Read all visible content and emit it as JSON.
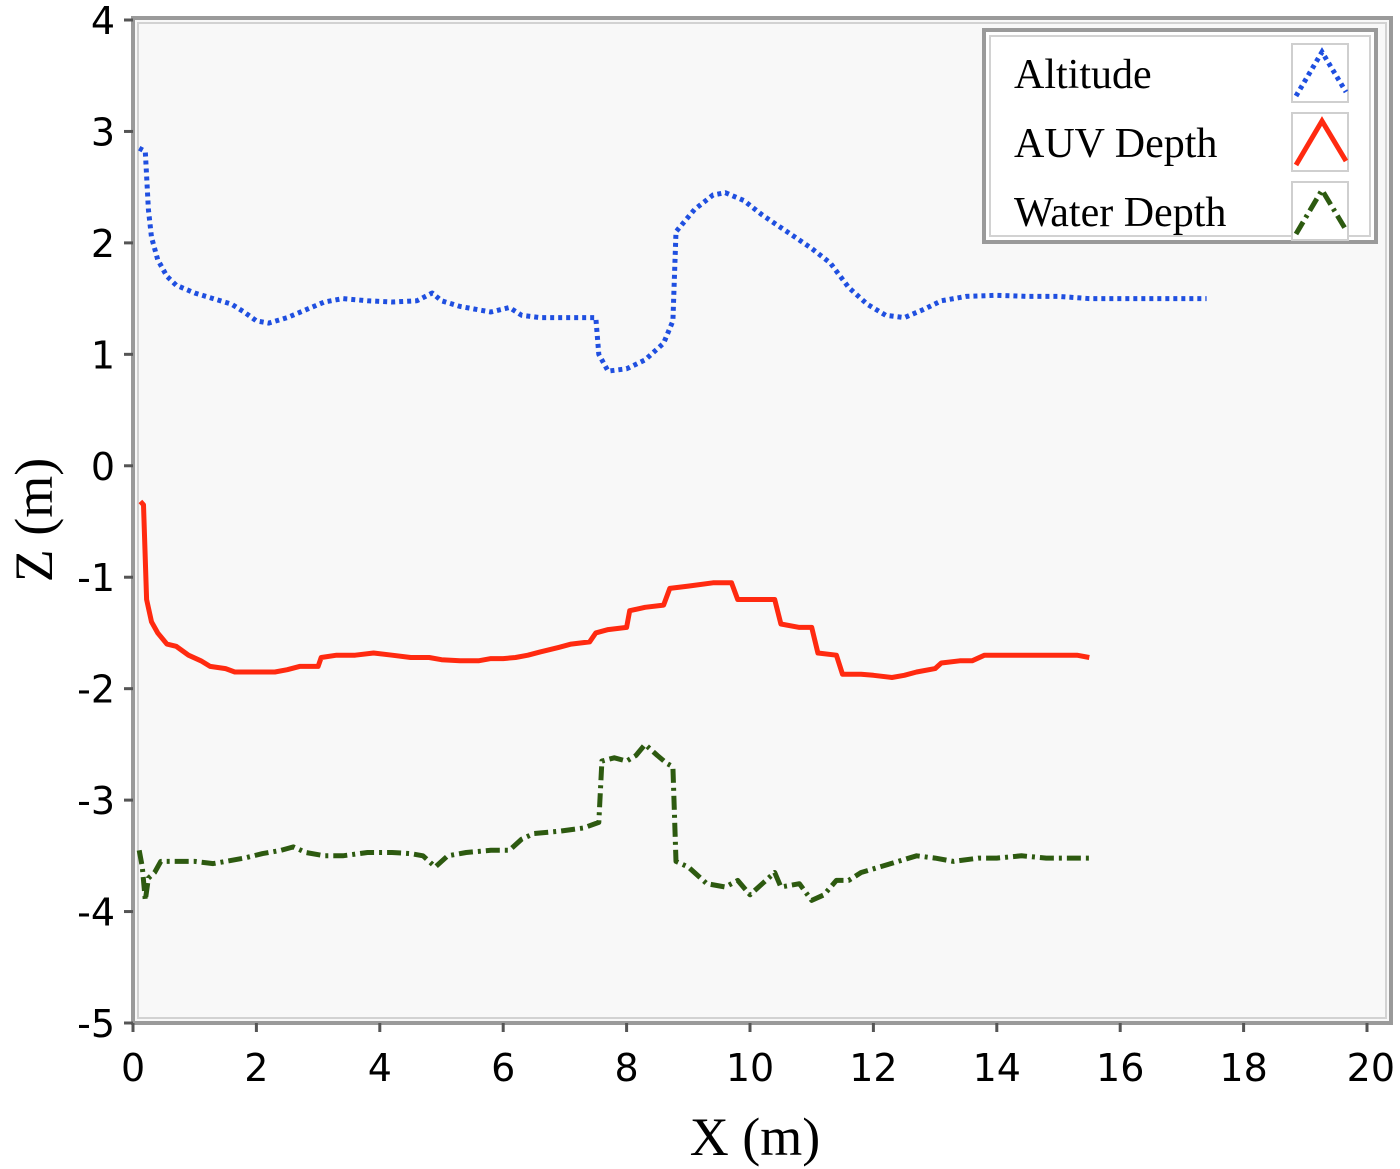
{
  "chart_data": {
    "type": "line",
    "xlabel": "X (m)",
    "ylabel": "Z (m)",
    "xlim": [
      0,
      20
    ],
    "ylim": [
      -5,
      4
    ],
    "x_ticks": [
      "0",
      "2",
      "4",
      "6",
      "8",
      "10",
      "12",
      "14",
      "16",
      "18",
      "20"
    ],
    "y_ticks": [
      "4",
      "3",
      "2",
      "1",
      "0",
      "-1",
      "-2",
      "-3",
      "-4",
      "-5"
    ],
    "grid": false,
    "legend_position": "top-right",
    "series": [
      {
        "name": "Altitude",
        "color": "#1f4fe0",
        "style": "dotted",
        "points": [
          [
            0.1,
            2.85
          ],
          [
            0.2,
            2.82
          ],
          [
            0.25,
            2.3
          ],
          [
            0.3,
            2.05
          ],
          [
            0.4,
            1.85
          ],
          [
            0.55,
            1.7
          ],
          [
            0.7,
            1.62
          ],
          [
            1.0,
            1.55
          ],
          [
            1.3,
            1.5
          ],
          [
            1.6,
            1.45
          ],
          [
            1.8,
            1.38
          ],
          [
            2.0,
            1.3
          ],
          [
            2.2,
            1.28
          ],
          [
            2.5,
            1.33
          ],
          [
            2.8,
            1.4
          ],
          [
            3.1,
            1.47
          ],
          [
            3.4,
            1.5
          ],
          [
            3.8,
            1.48
          ],
          [
            4.2,
            1.47
          ],
          [
            4.6,
            1.48
          ],
          [
            4.85,
            1.55
          ],
          [
            5.0,
            1.48
          ],
          [
            5.3,
            1.43
          ],
          [
            5.6,
            1.4
          ],
          [
            5.8,
            1.38
          ],
          [
            6.1,
            1.42
          ],
          [
            6.3,
            1.35
          ],
          [
            6.6,
            1.33
          ],
          [
            7.0,
            1.33
          ],
          [
            7.5,
            1.33
          ],
          [
            7.55,
            1.0
          ],
          [
            7.7,
            0.85
          ],
          [
            8.0,
            0.87
          ],
          [
            8.3,
            0.95
          ],
          [
            8.6,
            1.1
          ],
          [
            8.75,
            1.3
          ],
          [
            8.8,
            2.1
          ],
          [
            9.1,
            2.3
          ],
          [
            9.4,
            2.43
          ],
          [
            9.6,
            2.45
          ],
          [
            9.9,
            2.38
          ],
          [
            10.2,
            2.25
          ],
          [
            10.6,
            2.1
          ],
          [
            11.0,
            1.95
          ],
          [
            11.3,
            1.82
          ],
          [
            11.6,
            1.6
          ],
          [
            11.9,
            1.45
          ],
          [
            12.2,
            1.35
          ],
          [
            12.5,
            1.33
          ],
          [
            12.8,
            1.4
          ],
          [
            13.1,
            1.48
          ],
          [
            13.5,
            1.52
          ],
          [
            14.0,
            1.53
          ],
          [
            14.5,
            1.52
          ],
          [
            15.0,
            1.52
          ],
          [
            15.5,
            1.5
          ],
          [
            16.0,
            1.5
          ],
          [
            16.5,
            1.5
          ],
          [
            17.0,
            1.5
          ],
          [
            17.4,
            1.5
          ]
        ]
      },
      {
        "name": "AUV Depth",
        "color": "#ff2a10",
        "style": "solid",
        "points": [
          [
            0.12,
            -0.32
          ],
          [
            0.17,
            -0.35
          ],
          [
            0.22,
            -1.2
          ],
          [
            0.3,
            -1.4
          ],
          [
            0.4,
            -1.5
          ],
          [
            0.55,
            -1.6
          ],
          [
            0.7,
            -1.62
          ],
          [
            0.9,
            -1.7
          ],
          [
            1.1,
            -1.75
          ],
          [
            1.25,
            -1.8
          ],
          [
            1.5,
            -1.82
          ],
          [
            1.65,
            -1.85
          ],
          [
            1.9,
            -1.85
          ],
          [
            2.3,
            -1.85
          ],
          [
            2.5,
            -1.83
          ],
          [
            2.7,
            -1.8
          ],
          [
            3.0,
            -1.8
          ],
          [
            3.05,
            -1.72
          ],
          [
            3.3,
            -1.7
          ],
          [
            3.6,
            -1.7
          ],
          [
            3.9,
            -1.68
          ],
          [
            4.2,
            -1.7
          ],
          [
            4.5,
            -1.72
          ],
          [
            4.8,
            -1.72
          ],
          [
            5.0,
            -1.74
          ],
          [
            5.3,
            -1.75
          ],
          [
            5.6,
            -1.75
          ],
          [
            5.8,
            -1.73
          ],
          [
            6.0,
            -1.73
          ],
          [
            6.2,
            -1.72
          ],
          [
            6.4,
            -1.7
          ],
          [
            6.6,
            -1.67
          ],
          [
            6.9,
            -1.63
          ],
          [
            7.1,
            -1.6
          ],
          [
            7.4,
            -1.58
          ],
          [
            7.5,
            -1.5
          ],
          [
            7.7,
            -1.47
          ],
          [
            8.0,
            -1.45
          ],
          [
            8.05,
            -1.3
          ],
          [
            8.3,
            -1.27
          ],
          [
            8.6,
            -1.25
          ],
          [
            8.7,
            -1.1
          ],
          [
            9.0,
            -1.08
          ],
          [
            9.4,
            -1.05
          ],
          [
            9.7,
            -1.05
          ],
          [
            9.8,
            -1.2
          ],
          [
            10.1,
            -1.2
          ],
          [
            10.4,
            -1.2
          ],
          [
            10.5,
            -1.42
          ],
          [
            10.8,
            -1.45
          ],
          [
            11.0,
            -1.45
          ],
          [
            11.1,
            -1.68
          ],
          [
            11.4,
            -1.7
          ],
          [
            11.5,
            -1.87
          ],
          [
            11.8,
            -1.87
          ],
          [
            12.0,
            -1.88
          ],
          [
            12.3,
            -1.9
          ],
          [
            12.5,
            -1.88
          ],
          [
            12.7,
            -1.85
          ],
          [
            13.0,
            -1.82
          ],
          [
            13.1,
            -1.77
          ],
          [
            13.4,
            -1.75
          ],
          [
            13.6,
            -1.75
          ],
          [
            13.8,
            -1.7
          ],
          [
            14.2,
            -1.7
          ],
          [
            14.5,
            -1.7
          ],
          [
            15.0,
            -1.7
          ],
          [
            15.3,
            -1.7
          ],
          [
            15.5,
            -1.72
          ]
        ]
      },
      {
        "name": "Water Depth",
        "color": "#2d5a10",
        "style": "dashdot",
        "points": [
          [
            0.1,
            -3.45
          ],
          [
            0.15,
            -3.6
          ],
          [
            0.2,
            -3.9
          ],
          [
            0.25,
            -3.7
          ],
          [
            0.35,
            -3.65
          ],
          [
            0.45,
            -3.55
          ],
          [
            0.7,
            -3.55
          ],
          [
            1.0,
            -3.55
          ],
          [
            1.3,
            -3.57
          ],
          [
            1.5,
            -3.55
          ],
          [
            1.8,
            -3.52
          ],
          [
            2.1,
            -3.48
          ],
          [
            2.4,
            -3.45
          ],
          [
            2.6,
            -3.42
          ],
          [
            2.8,
            -3.47
          ],
          [
            3.1,
            -3.5
          ],
          [
            3.4,
            -3.5
          ],
          [
            3.8,
            -3.47
          ],
          [
            4.2,
            -3.47
          ],
          [
            4.5,
            -3.48
          ],
          [
            4.7,
            -3.5
          ],
          [
            4.9,
            -3.6
          ],
          [
            5.1,
            -3.5
          ],
          [
            5.4,
            -3.47
          ],
          [
            5.8,
            -3.45
          ],
          [
            6.1,
            -3.45
          ],
          [
            6.3,
            -3.35
          ],
          [
            6.5,
            -3.3
          ],
          [
            6.9,
            -3.28
          ],
          [
            7.3,
            -3.25
          ],
          [
            7.55,
            -3.2
          ],
          [
            7.6,
            -2.65
          ],
          [
            7.8,
            -2.62
          ],
          [
            8.0,
            -2.65
          ],
          [
            8.15,
            -2.6
          ],
          [
            8.3,
            -2.5
          ],
          [
            8.5,
            -2.6
          ],
          [
            8.65,
            -2.67
          ],
          [
            8.75,
            -2.7
          ],
          [
            8.8,
            -3.55
          ],
          [
            9.0,
            -3.6
          ],
          [
            9.3,
            -3.75
          ],
          [
            9.6,
            -3.78
          ],
          [
            9.8,
            -3.72
          ],
          [
            10.0,
            -3.85
          ],
          [
            10.2,
            -3.75
          ],
          [
            10.4,
            -3.65
          ],
          [
            10.5,
            -3.78
          ],
          [
            10.8,
            -3.75
          ],
          [
            11.0,
            -3.9
          ],
          [
            11.2,
            -3.85
          ],
          [
            11.4,
            -3.72
          ],
          [
            11.6,
            -3.72
          ],
          [
            11.8,
            -3.65
          ],
          [
            12.1,
            -3.6
          ],
          [
            12.4,
            -3.55
          ],
          [
            12.7,
            -3.5
          ],
          [
            13.0,
            -3.52
          ],
          [
            13.3,
            -3.55
          ],
          [
            13.7,
            -3.52
          ],
          [
            14.0,
            -3.52
          ],
          [
            14.4,
            -3.5
          ],
          [
            14.8,
            -3.52
          ],
          [
            15.2,
            -3.52
          ],
          [
            15.5,
            -3.52
          ]
        ]
      }
    ]
  }
}
